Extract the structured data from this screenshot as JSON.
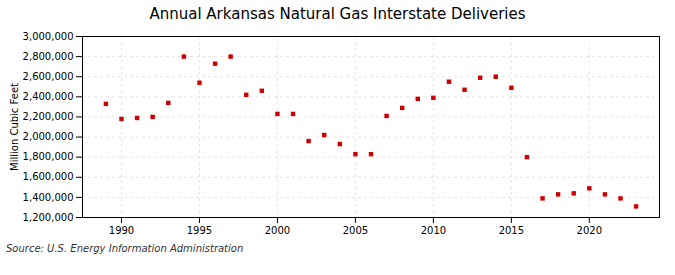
{
  "chart_data": {
    "type": "scatter",
    "title": "Annual Arkansas Natural Gas Interstate Deliveries",
    "ylabel": "Million Cubic Feet",
    "source": "Source: U.S. Energy Information Administration",
    "color": "#cc0000",
    "marker": "square",
    "grid": true,
    "x": [
      1989,
      1990,
      1991,
      1992,
      1993,
      1994,
      1995,
      1996,
      1997,
      1998,
      1999,
      2000,
      2001,
      2002,
      2003,
      2004,
      2005,
      2006,
      2007,
      2008,
      2009,
      2010,
      2011,
      2012,
      2013,
      2014,
      2015,
      2016,
      2017,
      2018,
      2019,
      2020,
      2021,
      2022,
      2023
    ],
    "values": [
      2330000,
      2180000,
      2190000,
      2200000,
      2340000,
      2800000,
      2540000,
      2730000,
      2800000,
      2420000,
      2460000,
      2230000,
      2230000,
      1960000,
      2020000,
      1930000,
      1830000,
      1830000,
      2210000,
      2290000,
      2380000,
      2390000,
      2550000,
      2470000,
      2590000,
      2600000,
      2490000,
      1800000,
      1390000,
      1430000,
      1440000,
      1490000,
      1430000,
      1390000,
      1310000
    ],
    "xlim": [
      1987.5,
      2024.5
    ],
    "xticks": [
      1990,
      1995,
      2000,
      2005,
      2010,
      2015,
      2020
    ],
    "ylim": [
      1200000,
      3000000
    ],
    "yticks": [
      {
        "value": 1200000,
        "label": "1,200,000"
      },
      {
        "value": 1400000,
        "label": "1,400,000"
      },
      {
        "value": 1600000,
        "label": "1,600,000"
      },
      {
        "value": 1800000,
        "label": "1,800,000"
      },
      {
        "value": 2000000,
        "label": "2,000,000"
      },
      {
        "value": 2200000,
        "label": "2,200,000"
      },
      {
        "value": 2400000,
        "label": "2,400,000"
      },
      {
        "value": 2600000,
        "label": "2,600,000"
      },
      {
        "value": 2800000,
        "label": "2,800,000"
      },
      {
        "value": 3000000,
        "label": "3,000,000"
      }
    ]
  }
}
